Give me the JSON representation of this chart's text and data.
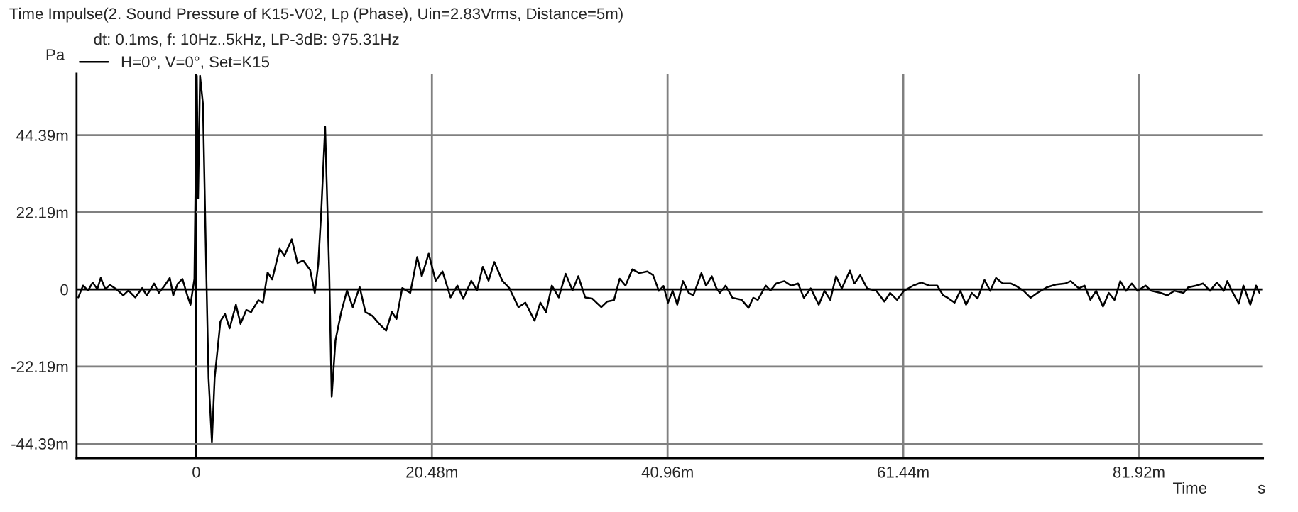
{
  "chart_data": {
    "type": "line",
    "title": "Time Impulse(2. Sound Pressure of K15-V02, Lp (Phase), Uin=2.83Vrms, Distance=5m)",
    "subtitle": "dt: 0.1ms, f: 10Hz..5kHz, LP-3dB: 975.31Hz",
    "xlabel": "Time",
    "ylabel": "Pa",
    "annotations": [
      "s"
    ],
    "series": [
      {
        "name": "H=0°, V=0°, Set=K15",
        "color": "#000000",
        "x": [
          -10.25,
          -9.84,
          -9.4,
          -9.0,
          -8.6,
          -8.3,
          -7.9,
          -7.5,
          -6.96,
          -6.34,
          -5.9,
          -5.3,
          -4.7,
          -4.3,
          -3.66,
          -3.25,
          -2.75,
          -2.3,
          -2.0,
          -1.6,
          -1.2,
          -0.78,
          -0.5,
          -0.16,
          0.05,
          0.16,
          0.33,
          0.58,
          0.86,
          1.07,
          1.36,
          1.6,
          2.1,
          2.5,
          2.9,
          3.45,
          3.85,
          4.35,
          4.77,
          5.4,
          5.8,
          6.2,
          6.6,
          7.25,
          7.66,
          8.3,
          8.8,
          9.3,
          9.9,
          10.3,
          10.6,
          10.86,
          11.2,
          11.56,
          11.77,
          12.1,
          12.6,
          13.1,
          13.6,
          14.2,
          14.7,
          15.3,
          15.9,
          16.5,
          17.0,
          17.4,
          17.9,
          18.6,
          19.2,
          19.6,
          20.2,
          20.8,
          21.4,
          22.1,
          22.7,
          23.2,
          23.9,
          24.4,
          24.9,
          25.4,
          25.9,
          26.6,
          27.2,
          28.0,
          28.6,
          29.4,
          29.9,
          30.4,
          30.9,
          31.5,
          32.1,
          32.7,
          33.2,
          33.8,
          34.4,
          35.2,
          35.7,
          36.3,
          36.8,
          37.3,
          37.9,
          38.5,
          39.2,
          39.7,
          40.2,
          40.6,
          41.0,
          41.4,
          41.8,
          42.3,
          42.8,
          43.2,
          43.9,
          44.3,
          44.8,
          45.2,
          45.5,
          46.0,
          46.6,
          47.4,
          48.0,
          48.4,
          48.8,
          49.5,
          49.9,
          50.4,
          51.1,
          51.7,
          52.3,
          52.8,
          53.4,
          54.1,
          54.6,
          55.1,
          55.6,
          56.1,
          56.8,
          57.2,
          57.7,
          58.3,
          59.1,
          59.8,
          60.3,
          60.9,
          61.5,
          62.3,
          63.0,
          63.7,
          64.4,
          64.9,
          65.3,
          65.9,
          66.4,
          66.9,
          67.4,
          67.9,
          68.5,
          69.0,
          69.5,
          70.1,
          70.8,
          71.2,
          71.9,
          72.5,
          73.1,
          73.9,
          74.7,
          75.5,
          76.0,
          76.7,
          77.2,
          77.7,
          78.2,
          78.8,
          79.3,
          79.8,
          80.3,
          80.8,
          81.3,
          81.8,
          82.5,
          83.0,
          83.8,
          84.4,
          85.0,
          85.8,
          86.2,
          86.9,
          87.5,
          88.1,
          88.7,
          89.3,
          89.6,
          90.0,
          90.6,
          91.0,
          91.6,
          92.1,
          92.4
        ],
        "values": [
          -2.3,
          1.1,
          -0.3,
          2.0,
          0.1,
          3.3,
          0.1,
          1.3,
          0.1,
          -1.7,
          -0.3,
          -2.3,
          0.4,
          -1.7,
          1.7,
          -1.0,
          1.1,
          3.3,
          -1.7,
          1.7,
          3.0,
          -1.7,
          -4.4,
          3.0,
          61.5,
          26.2,
          61.5,
          53.5,
          7.2,
          -25.5,
          -43.9,
          -25.5,
          -9.2,
          -7.1,
          -11.2,
          -4.4,
          -9.9,
          -5.9,
          -6.5,
          -3.1,
          -3.8,
          4.9,
          2.9,
          11.7,
          9.7,
          14.4,
          7.6,
          8.3,
          5.6,
          -1.0,
          7.2,
          22.2,
          46.9,
          4.5,
          -30.9,
          -14.6,
          -6.5,
          -0.3,
          -5.1,
          0.7,
          -6.5,
          -7.6,
          -9.9,
          -11.9,
          -6.5,
          -8.5,
          0.4,
          -1.0,
          9.3,
          3.8,
          10.3,
          2.5,
          5.2,
          -2.3,
          1.1,
          -2.7,
          2.5,
          -0.2,
          6.5,
          2.5,
          7.9,
          2.5,
          0.4,
          -5.1,
          -3.8,
          -9.0,
          -3.8,
          -6.5,
          1.1,
          -2.3,
          4.5,
          -0.3,
          3.8,
          -2.3,
          -2.6,
          -5.1,
          -3.5,
          -3.1,
          3.1,
          1.1,
          5.8,
          4.7,
          5.2,
          4.1,
          -0.4,
          1.0,
          -3.8,
          -0.4,
          -4.4,
          2.4,
          -1.0,
          -1.7,
          4.7,
          1.1,
          3.8,
          0.4,
          -1.0,
          1.1,
          -2.4,
          -3.0,
          -5.3,
          -2.4,
          -3.0,
          1.1,
          -0.3,
          1.7,
          2.4,
          1.1,
          1.7,
          -2.4,
          0.3,
          -4.4,
          -0.4,
          -3.0,
          3.8,
          0.3,
          5.4,
          1.7,
          4.1,
          0.3,
          -0.4,
          -3.5,
          -1.0,
          -3.0,
          -0.4,
          1.1,
          2.0,
          1.1,
          1.1,
          -1.7,
          -2.4,
          -3.8,
          -0.4,
          -4.4,
          -1.0,
          -2.6,
          2.7,
          -0.4,
          3.3,
          1.7,
          1.7,
          1.1,
          -0.4,
          -2.4,
          -1.0,
          0.6,
          1.4,
          1.7,
          2.4,
          0.3,
          1.1,
          -3.0,
          -0.4,
          -4.9,
          -1.0,
          -3.0,
          2.4,
          -0.4,
          1.7,
          -0.4,
          1.1,
          -0.4,
          -1.0,
          -1.7,
          -0.4,
          -1.0,
          0.6,
          1.1,
          1.7,
          -0.4,
          2.0,
          -0.4,
          2.4,
          -0.4,
          -4.1,
          1.1,
          -4.4,
          1.1,
          -1.0
        ]
      }
    ],
    "xlim": [
      -10.4,
      92.7
    ],
    "ylim": [
      -48.6,
      62.1
    ],
    "xticks": [
      0,
      {
        "value": 20.48,
        "label": "20.48m"
      },
      {
        "value": 40.96,
        "label": "40.96m"
      },
      {
        "value": 61.44,
        "label": "61.44m"
      },
      {
        "value": 81.92,
        "label": "81.92m"
      }
    ],
    "yticks": [
      {
        "value": -44.39,
        "label": "-44.39m"
      },
      {
        "value": -22.19,
        "label": "-22.19m"
      },
      0,
      {
        "value": 22.19,
        "label": "22.19m"
      },
      {
        "value": 44.39,
        "label": "44.39m"
      }
    ],
    "grid": true,
    "legend": "top left",
    "line_style": "solid"
  }
}
